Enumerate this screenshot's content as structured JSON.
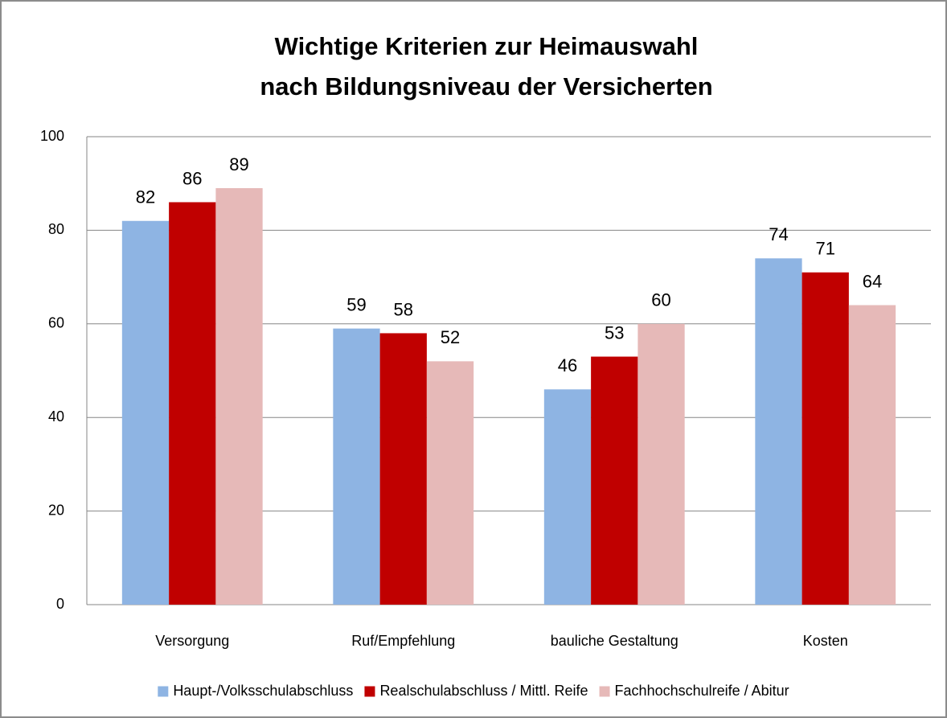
{
  "chart_data": {
    "type": "bar",
    "title": [
      "Wichtige Kriterien zur Heimauswahl",
      "nach Bildungsniveau der Versicherten"
    ],
    "categories": [
      "Versorgung",
      "Ruf/Empfehlung",
      "bauliche Gestaltung",
      "Kosten"
    ],
    "series": [
      {
        "name": "Haupt-/Volksschulabschluss",
        "color": "#8eb4e3",
        "values": [
          82,
          59,
          46,
          74
        ]
      },
      {
        "name": "Realschulabschluss / Mittl. Reife",
        "color": "#c00000",
        "values": [
          86,
          58,
          53,
          71
        ]
      },
      {
        "name": "Fachhochschulreife / Abitur",
        "color": "#e6b9b8",
        "values": [
          89,
          52,
          60,
          64
        ]
      }
    ],
    "ylim": [
      0,
      100
    ],
    "yticks": [
      0,
      20,
      40,
      60,
      80,
      100
    ],
    "grid": true,
    "legend": "bottom"
  }
}
